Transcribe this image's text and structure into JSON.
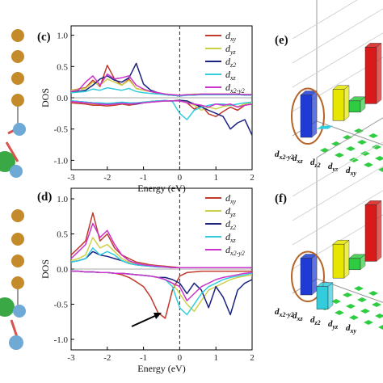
{
  "panels": {
    "c": "(c)",
    "d": "(d)",
    "e": "(e)",
    "f": "(f)"
  },
  "chart_data": [
    {
      "type": "line",
      "panel": "(c)",
      "xlabel": "Energy (eV)",
      "ylabel": "DOS",
      "xlim": [
        -3,
        2
      ],
      "ylim": [
        -1.15,
        1.15
      ],
      "xticks": [
        "-3",
        "-2",
        "-1",
        "0",
        "1",
        "2"
      ],
      "yticks": [
        "1.0",
        "0.5",
        "0.0",
        "-0.5",
        "-1.0"
      ],
      "fermi_level": 0,
      "legend_position": "top-right",
      "x": [
        -3.0,
        -2.8,
        -2.6,
        -2.4,
        -2.2,
        -2.0,
        -1.8,
        -1.6,
        -1.4,
        -1.2,
        -1.0,
        -0.8,
        -0.6,
        -0.4,
        -0.2,
        0.0,
        0.2,
        0.4,
        0.6,
        0.8,
        1.0,
        1.2,
        1.4,
        1.6,
        1.8,
        2.0
      ],
      "series": [
        {
          "name": "d_xy",
          "color": "#c0392b",
          "up": [
            0.12,
            0.14,
            0.16,
            0.28,
            0.18,
            0.52,
            0.3,
            0.2,
            0.3,
            0.15,
            0.12,
            0.1,
            0.07,
            0.05,
            0.04,
            0.03,
            0.05,
            0.05,
            0.06,
            0.05,
            0.06,
            0.05,
            0.06,
            0.06,
            0.05,
            0.05
          ],
          "down": [
            -0.08,
            -0.09,
            -0.1,
            -0.12,
            -0.12,
            -0.13,
            -0.12,
            -0.1,
            -0.12,
            -0.1,
            -0.08,
            -0.07,
            -0.06,
            -0.05,
            -0.05,
            -0.04,
            -0.08,
            -0.18,
            -0.12,
            -0.26,
            -0.3,
            -0.22,
            -0.15,
            -0.2,
            -0.12,
            -0.1
          ]
        },
        {
          "name": "d_yz",
          "color": "#cdd14a",
          "up": [
            0.12,
            0.13,
            0.15,
            0.25,
            0.2,
            0.3,
            0.25,
            0.2,
            0.28,
            0.15,
            0.12,
            0.1,
            0.08,
            0.06,
            0.05,
            0.04,
            0.05,
            0.06,
            0.06,
            0.06,
            0.06,
            0.06,
            0.06,
            0.06,
            0.05,
            0.05
          ],
          "down": [
            -0.06,
            -0.07,
            -0.08,
            -0.1,
            -0.1,
            -0.11,
            -0.1,
            -0.09,
            -0.1,
            -0.09,
            -0.07,
            -0.06,
            -0.05,
            -0.05,
            -0.05,
            -0.04,
            -0.06,
            -0.12,
            -0.2,
            -0.15,
            -0.18,
            -0.14,
            -0.12,
            -0.14,
            -0.1,
            -0.08
          ]
        },
        {
          "name": "d_z2",
          "color": "#1a237e",
          "up": [
            0.1,
            0.1,
            0.12,
            0.2,
            0.3,
            0.35,
            0.28,
            0.25,
            0.32,
            0.55,
            0.22,
            0.12,
            0.08,
            0.05,
            0.04,
            0.03,
            0.04,
            0.05,
            0.05,
            0.05,
            0.05,
            0.05,
            0.05,
            0.05,
            0.05,
            0.05
          ],
          "down": [
            -0.05,
            -0.06,
            -0.07,
            -0.08,
            -0.09,
            -0.1,
            -0.09,
            -0.08,
            -0.09,
            -0.1,
            -0.08,
            -0.06,
            -0.05,
            -0.05,
            -0.05,
            -0.04,
            -0.05,
            -0.1,
            -0.15,
            -0.2,
            -0.25,
            -0.3,
            -0.5,
            -0.4,
            -0.35,
            -0.6
          ]
        },
        {
          "name": "d_xz",
          "color": "#33ccdd",
          "up": [
            0.08,
            0.09,
            0.1,
            0.14,
            0.12,
            0.16,
            0.14,
            0.12,
            0.15,
            0.1,
            0.08,
            0.07,
            0.06,
            0.05,
            0.04,
            0.03,
            0.04,
            0.04,
            0.05,
            0.05,
            0.05,
            0.05,
            0.05,
            0.05,
            0.04,
            0.04
          ],
          "down": [
            -0.05,
            -0.06,
            -0.07,
            -0.08,
            -0.08,
            -0.09,
            -0.08,
            -0.07,
            -0.08,
            -0.08,
            -0.07,
            -0.06,
            -0.05,
            -0.04,
            -0.06,
            -0.25,
            -0.35,
            -0.2,
            -0.15,
            -0.12,
            -0.1,
            -0.1,
            -0.12,
            -0.1,
            -0.08,
            -0.07
          ]
        },
        {
          "name": "d_x2-y2",
          "color": "#cc33cc",
          "up": [
            0.1,
            0.12,
            0.25,
            0.35,
            0.2,
            0.38,
            0.3,
            0.32,
            0.35,
            0.2,
            0.14,
            0.1,
            0.08,
            0.06,
            0.05,
            0.04,
            0.05,
            0.05,
            0.06,
            0.06,
            0.06,
            0.06,
            0.06,
            0.06,
            0.05,
            0.05
          ],
          "down": [
            -0.06,
            -0.07,
            -0.08,
            -0.09,
            -0.1,
            -0.11,
            -0.1,
            -0.09,
            -0.1,
            -0.09,
            -0.08,
            -0.07,
            -0.06,
            -0.05,
            -0.05,
            -0.05,
            -0.08,
            -0.1,
            -0.12,
            -0.15,
            -0.1,
            -0.12,
            -0.1,
            -0.15,
            -0.12,
            -0.1
          ]
        }
      ]
    },
    {
      "type": "line",
      "panel": "(d)",
      "xlabel": "Energy (eV)",
      "ylabel": "DOS",
      "xlim": [
        -3,
        2
      ],
      "ylim": [
        -1.15,
        1.15
      ],
      "xticks": [
        "-3",
        "-2",
        "-1",
        "0",
        "1",
        "2"
      ],
      "yticks": [
        "1.0",
        "0.5",
        "0.0",
        "-0.5",
        "-1.0"
      ],
      "fermi_level": 0,
      "legend_position": "top-right",
      "x": [
        -3.0,
        -2.8,
        -2.6,
        -2.4,
        -2.2,
        -2.0,
        -1.8,
        -1.6,
        -1.4,
        -1.2,
        -1.0,
        -0.8,
        -0.6,
        -0.4,
        -0.2,
        0.0,
        0.2,
        0.4,
        0.6,
        0.8,
        1.0,
        1.2,
        1.4,
        1.6,
        1.8,
        2.0
      ],
      "series": [
        {
          "name": "d_xy",
          "color": "#c0392b",
          "up": [
            0.2,
            0.3,
            0.4,
            0.8,
            0.4,
            0.5,
            0.3,
            0.2,
            0.15,
            0.1,
            0.08,
            0.06,
            0.05,
            0.04,
            0.03,
            0.02,
            0.02,
            0.02,
            0.02,
            0.02,
            0.02,
            0.02,
            0.02,
            0.02,
            0.02,
            0.02
          ],
          "down": [
            -0.03,
            -0.03,
            -0.04,
            -0.04,
            -0.05,
            -0.05,
            -0.06,
            -0.08,
            -0.12,
            -0.18,
            -0.25,
            -0.4,
            -0.62,
            -0.7,
            -0.3,
            -0.1,
            -0.05,
            -0.04,
            -0.03,
            -0.03,
            -0.03,
            -0.03,
            -0.03,
            -0.03,
            -0.03,
            -0.03
          ]
        },
        {
          "name": "d_yz",
          "color": "#cdd14a",
          "up": [
            0.12,
            0.15,
            0.2,
            0.45,
            0.3,
            0.35,
            0.25,
            0.15,
            0.1,
            0.08,
            0.06,
            0.05,
            0.04,
            0.03,
            0.02,
            0.02,
            0.02,
            0.02,
            0.02,
            0.02,
            0.02,
            0.02,
            0.02,
            0.02,
            0.02,
            0.02
          ],
          "down": [
            -0.03,
            -0.03,
            -0.04,
            -0.04,
            -0.05,
            -0.05,
            -0.06,
            -0.06,
            -0.07,
            -0.08,
            -0.09,
            -0.1,
            -0.12,
            -0.15,
            -0.2,
            -0.35,
            -0.5,
            -0.6,
            -0.45,
            -0.3,
            -0.25,
            -0.2,
            -0.15,
            -0.12,
            -0.1,
            -0.08
          ]
        },
        {
          "name": "d_z2",
          "color": "#1a237e",
          "up": [
            0.1,
            0.12,
            0.15,
            0.25,
            0.2,
            0.18,
            0.15,
            0.12,
            0.08,
            0.06,
            0.05,
            0.04,
            0.03,
            0.03,
            0.02,
            0.02,
            0.02,
            0.02,
            0.02,
            0.02,
            0.02,
            0.02,
            0.02,
            0.02,
            0.02,
            0.02
          ],
          "down": [
            -0.03,
            -0.03,
            -0.04,
            -0.04,
            -0.05,
            -0.05,
            -0.06,
            -0.06,
            -0.07,
            -0.08,
            -0.09,
            -0.1,
            -0.12,
            -0.12,
            -0.15,
            -0.2,
            -0.35,
            -0.2,
            -0.3,
            -0.55,
            -0.25,
            -0.4,
            -0.65,
            -0.3,
            -0.2,
            -0.15
          ]
        },
        {
          "name": "d_xz",
          "color": "#33ccdd",
          "up": [
            0.1,
            0.12,
            0.15,
            0.3,
            0.2,
            0.25,
            0.2,
            0.12,
            0.08,
            0.06,
            0.05,
            0.04,
            0.03,
            0.03,
            0.02,
            0.02,
            0.02,
            0.02,
            0.02,
            0.02,
            0.02,
            0.02,
            0.02,
            0.02,
            0.02,
            0.02
          ],
          "down": [
            -0.03,
            -0.03,
            -0.04,
            -0.04,
            -0.05,
            -0.05,
            -0.06,
            -0.06,
            -0.07,
            -0.08,
            -0.09,
            -0.1,
            -0.12,
            -0.15,
            -0.25,
            -0.55,
            -0.65,
            -0.5,
            -0.35,
            -0.25,
            -0.2,
            -0.15,
            -0.12,
            -0.1,
            -0.08,
            -0.06
          ]
        },
        {
          "name": "d_x2-y2",
          "color": "#cc33cc",
          "up": [
            0.15,
            0.25,
            0.35,
            0.65,
            0.45,
            0.55,
            0.35,
            0.2,
            0.12,
            0.08,
            0.06,
            0.05,
            0.04,
            0.03,
            0.02,
            0.02,
            0.02,
            0.02,
            0.02,
            0.02,
            0.02,
            0.02,
            0.02,
            0.02,
            0.02,
            0.02
          ],
          "down": [
            -0.03,
            -0.03,
            -0.04,
            -0.04,
            -0.05,
            -0.05,
            -0.06,
            -0.06,
            -0.07,
            -0.08,
            -0.09,
            -0.1,
            -0.12,
            -0.15,
            -0.2,
            -0.25,
            -0.45,
            -0.35,
            -0.25,
            -0.2,
            -0.15,
            -0.12,
            -0.1,
            -0.08,
            -0.06,
            -0.05
          ]
        }
      ]
    },
    {
      "type": "bar",
      "panel": "(e)",
      "categories": [
        "d_x2-y2",
        "d_xz",
        "d_z2",
        "d_yz",
        "d_xy"
      ],
      "values": [
        0.75,
        0.05,
        0.55,
        0.2,
        1.0
      ],
      "colors": [
        "#1f3bd6",
        "#33ccdd",
        "#e6e600",
        "#2ecc40",
        "#d91a1a"
      ],
      "highlighted": "d_x2-y2"
    },
    {
      "type": "bar",
      "panel": "(f)",
      "categories": [
        "d_x2-y2",
        "d_xz",
        "d_z2",
        "d_yz",
        "d_xy"
      ],
      "values": [
        0.65,
        -0.4,
        0.6,
        0.2,
        1.0
      ],
      "colors": [
        "#1f3bd6",
        "#33ccdd",
        "#e6e600",
        "#2ecc40",
        "#d91a1a"
      ],
      "highlighted": "d_x2-y2"
    }
  ],
  "colors": {
    "au_atom": "#c58a2a",
    "blue_atom": "#6fa9d6",
    "green_atom": "#3aa845",
    "red_atom": "#d9534f",
    "highlight_circle": "#b5652a"
  }
}
